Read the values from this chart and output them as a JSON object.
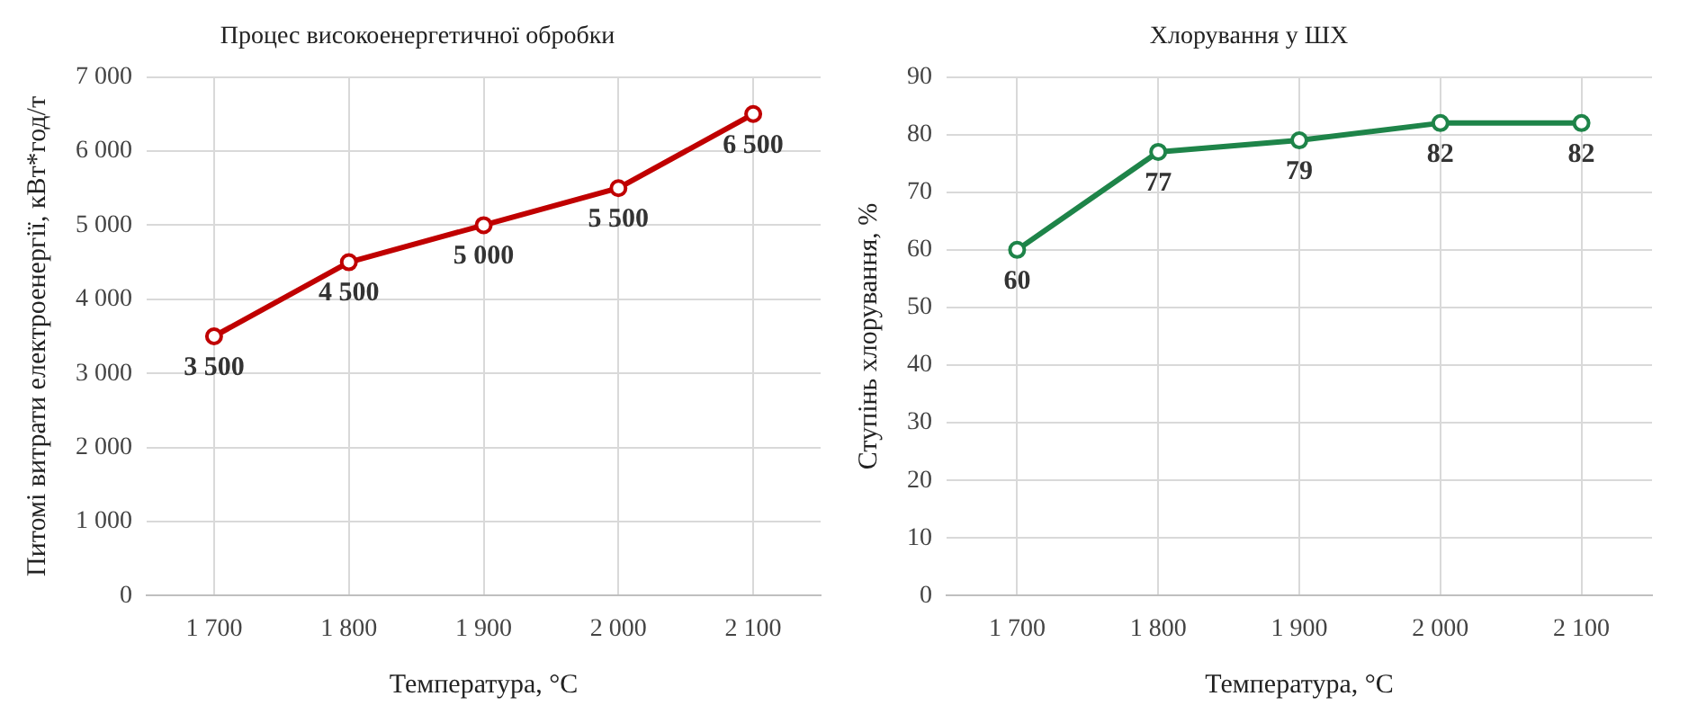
{
  "chart_data": [
    {
      "type": "line",
      "title": "Процес високоенергетичної обробки",
      "xlabel": "Температура, °С",
      "ylabel": "Питомі витрати електроенергії, кВт*год/т",
      "categories": [
        "1 700",
        "1 800",
        "1 900",
        "2 000",
        "2 100"
      ],
      "series": [
        {
          "color": "#c00000",
          "values": [
            3500,
            4500,
            5000,
            5500,
            6500
          ],
          "value_labels": [
            "3 500",
            "4 500",
            "5 000",
            "5 500",
            "6 500"
          ]
        }
      ],
      "ylim": [
        0,
        7000
      ],
      "yticks": [
        {
          "value": 0,
          "label": "0"
        },
        {
          "value": 1000,
          "label": "1 000"
        },
        {
          "value": 2000,
          "label": "2 000"
        },
        {
          "value": 3000,
          "label": "3 000"
        },
        {
          "value": 4000,
          "label": "4 000"
        },
        {
          "value": 5000,
          "label": "5 000"
        },
        {
          "value": 6000,
          "label": "6 000"
        },
        {
          "value": 7000,
          "label": "7 000"
        }
      ],
      "grid": true,
      "legend": false,
      "marker": "circle",
      "line_style": "solid"
    },
    {
      "type": "line",
      "title": "Хлорування у ШХ",
      "xlabel": "Температура, °С",
      "ylabel": "Ступінь хлорування, %",
      "categories": [
        "1 700",
        "1 800",
        "1 900",
        "2 000",
        "2 100"
      ],
      "series": [
        {
          "color": "#1e8449",
          "values": [
            60,
            77,
            79,
            82,
            82
          ]
        }
      ],
      "ylim": [
        0,
        90
      ],
      "yticks": [
        0,
        10,
        20,
        30,
        40,
        50,
        60,
        70,
        80,
        90
      ],
      "grid": true,
      "legend": false,
      "marker": "circle",
      "line_style": "solid",
      "data_labels": true
    }
  ]
}
